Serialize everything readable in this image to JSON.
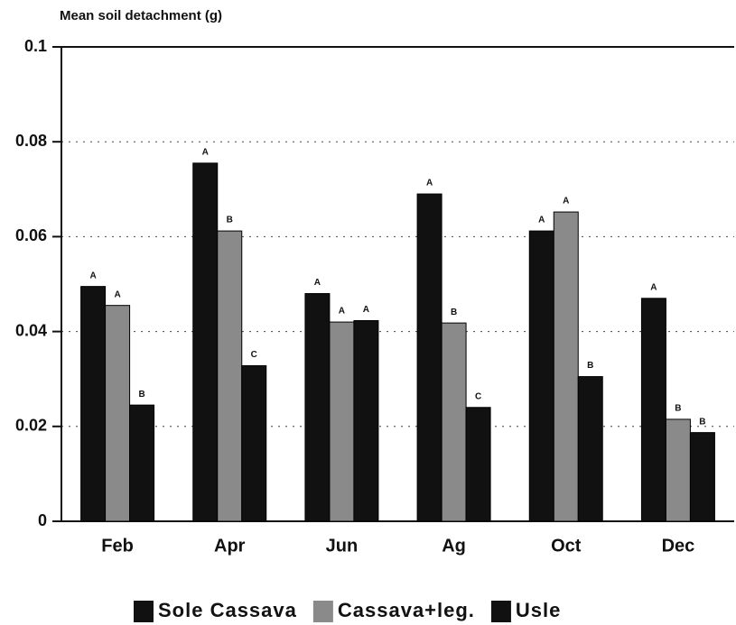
{
  "chart_data": {
    "type": "bar",
    "y_axis_label": "Mean soil detachment (g)",
    "categories": [
      "Feb",
      "Apr",
      "Jun",
      "Ag",
      "Oct",
      "Dec"
    ],
    "series": [
      {
        "name": "Sole Cassava",
        "color": "#111111",
        "values": [
          0.0495,
          0.0755,
          0.048,
          0.069,
          0.0612,
          0.047
        ],
        "letters": [
          "A",
          "A",
          "A",
          "A",
          "A",
          "A"
        ]
      },
      {
        "name": "Cassava+leg.",
        "color": "#8a8a8a",
        "values": [
          0.0455,
          0.0612,
          0.042,
          0.0418,
          0.0652,
          0.0215
        ],
        "letters": [
          "A",
          "B",
          "A",
          "B",
          "A",
          "B"
        ]
      },
      {
        "name": "Usle",
        "color": "#111111",
        "values": [
          0.0245,
          0.0328,
          0.0423,
          0.024,
          0.0305,
          0.0187
        ],
        "letters": [
          "B",
          "C",
          "A",
          "C",
          "B",
          "B"
        ]
      }
    ],
    "ylim": [
      0,
      0.1
    ],
    "yticks": [
      0,
      0.02,
      0.04,
      0.06,
      0.08,
      0.1
    ],
    "grid": true,
    "legend": "bottom"
  }
}
